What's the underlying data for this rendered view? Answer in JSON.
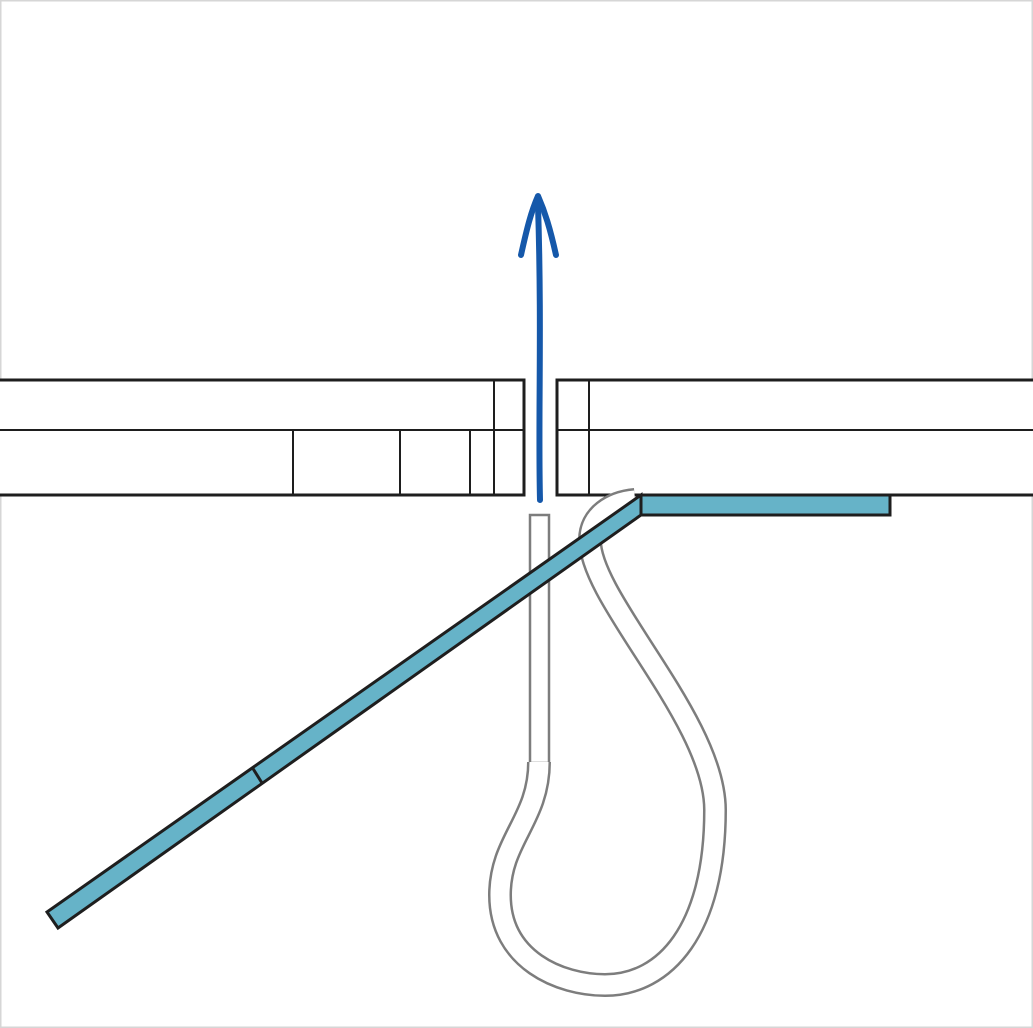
{
  "colors": {
    "background": "#ffffff",
    "outline": "#1e1e1e",
    "strap_fill": "#66b3c8",
    "loop_outline": "#7d7d7d",
    "arrow": "#1558aa",
    "frame": "#d6d6d6"
  },
  "icons": {
    "arrow": "arrow-up-icon"
  },
  "parts": [
    "left-panel",
    "right-panel",
    "blue-strap",
    "pull-tab",
    "wire-loop",
    "pull-direction-arrow"
  ]
}
